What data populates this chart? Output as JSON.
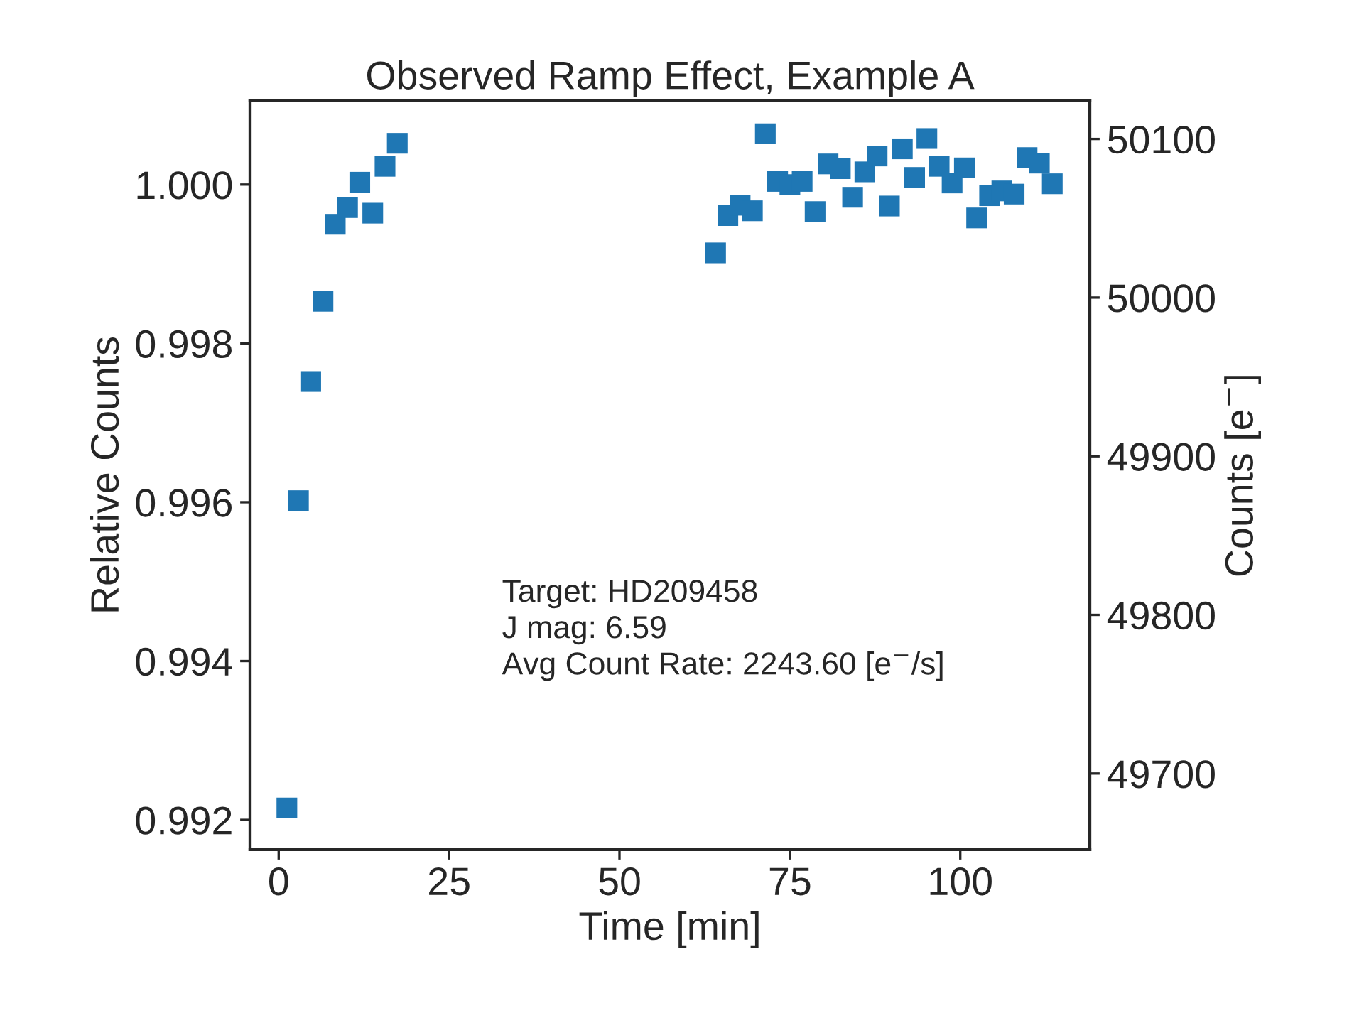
{
  "chart_data": {
    "type": "scatter",
    "title": "Observed Ramp Effect, Example A",
    "xlabel": "Time [min]",
    "ylabel": "Relative Counts",
    "y2label": "Counts [e$^{−}$]",
    "annotations": [
      "Target: HD209458\nJ mag: 6.59\nAvg Count Rate: 2243.60 [e$^{−}$/s]"
    ],
    "marker": "square",
    "grid": false,
    "legend": false,
    "xlim": [
      -4.2,
      119
    ],
    "xticks": [
      0,
      25,
      50,
      75,
      100
    ],
    "ylim": [
      0.991625,
      1.001054
    ],
    "yticks": [
      {
        "value": 0.992,
        "label": "0.992"
      },
      {
        "value": 0.994,
        "label": "0.994"
      },
      {
        "value": 0.996,
        "label": "0.996"
      },
      {
        "value": 0.998,
        "label": "0.998"
      },
      {
        "value": 1.0,
        "label": "1.000"
      }
    ],
    "y2lim": [
      49652,
      50124
    ],
    "y2ticks": [
      49700,
      49800,
      49900,
      50000,
      50100
    ],
    "series": [
      {
        "color": "#1f77b4",
        "x": [
          1.2,
          2.9,
          4.7,
          6.5,
          8.3,
          10.1,
          11.9,
          13.8,
          15.6,
          17.4,
          64.1,
          65.9,
          67.7,
          69.5,
          71.4,
          73.2,
          75.0,
          76.8,
          78.7,
          80.6,
          82.4,
          84.2,
          86.0,
          87.8,
          89.6,
          91.5,
          93.3,
          95.1,
          96.9,
          98.8,
          100.6,
          102.4,
          104.3,
          106.1,
          107.9,
          109.8,
          111.6,
          113.5
        ],
        "values": [
          0.99215,
          0.99602,
          0.99752,
          0.99853,
          0.9995,
          0.99971,
          1.00003,
          0.99964,
          1.00023,
          1.00052,
          0.99914,
          0.99961,
          0.99974,
          0.99967,
          1.00064,
          1.00004,
          1.0,
          1.00004,
          0.99966,
          1.00026,
          1.0002,
          0.99984,
          1.00016,
          1.00036,
          0.99973,
          1.00045,
          1.00009,
          1.00058,
          1.00023,
          1.00002,
          1.00021,
          0.99958,
          0.99986,
          0.99992,
          0.99988,
          1.00034,
          1.00027,
          1.00001
        ]
      }
    ]
  }
}
